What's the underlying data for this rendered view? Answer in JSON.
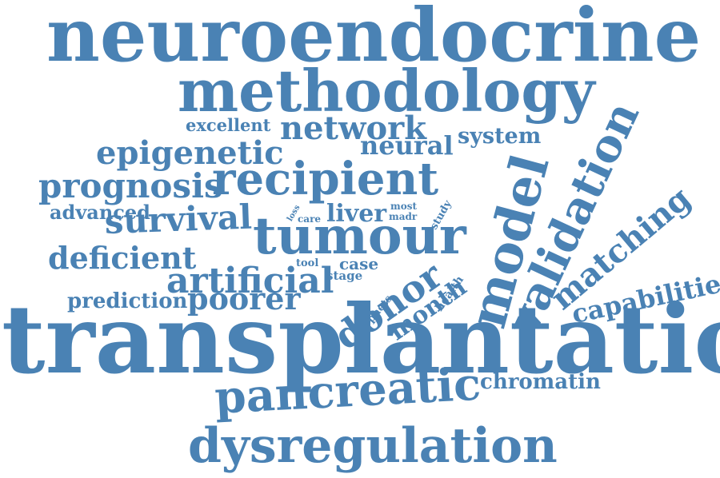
{
  "accent_color": "#4a82b4",
  "words": [
    "neuroendocrine",
    "methodology",
    "excellent",
    "network",
    "system",
    "epigenetic",
    "neural",
    "prognosis",
    "recipient",
    "advanced",
    "loss",
    "care",
    "liver",
    "most",
    "madr",
    "study",
    "survival",
    "tumour",
    "model",
    "validation",
    "matching",
    "deficient",
    "tool",
    "case",
    "stage",
    "artificial",
    "donor",
    "month",
    "capabilities",
    "health",
    "prediction",
    "poorer",
    "pnets",
    "transplantation",
    "chromatin",
    "pancreatic",
    "dysregulation"
  ]
}
